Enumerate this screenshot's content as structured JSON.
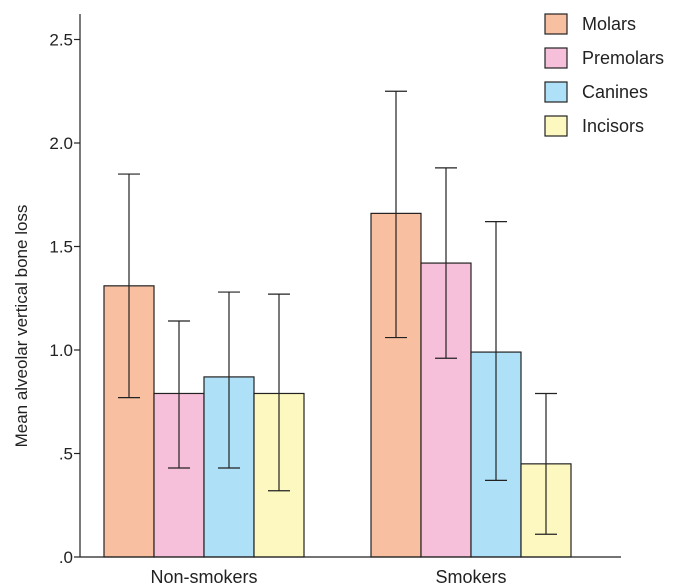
{
  "chart_data": {
    "type": "bar",
    "ylabel": "Mean alveolar vertical bone loss",
    "ylim": [
      0,
      2.6
    ],
    "yticks": [
      {
        "value": 0,
        "label": ".0"
      },
      {
        "value": 0.5,
        "label": ".5"
      },
      {
        "value": 1.0,
        "label": "1.0"
      },
      {
        "value": 1.5,
        "label": "1.5"
      },
      {
        "value": 2.0,
        "label": "2.0"
      },
      {
        "value": 2.5,
        "label": "2.5"
      }
    ],
    "categories": [
      "Non-smokers",
      "Smokers"
    ],
    "legend_position": "top-right",
    "grid": false,
    "series": [
      {
        "name": "Molars",
        "color": "#f9bfa1",
        "values": [
          1.31,
          1.66
        ],
        "err_low": [
          0.77,
          1.06
        ],
        "err_high": [
          1.85,
          2.25
        ]
      },
      {
        "name": "Premolars",
        "color": "#f7c0da",
        "values": [
          0.79,
          1.42
        ],
        "err_low": [
          0.43,
          0.96
        ],
        "err_high": [
          1.14,
          1.88
        ]
      },
      {
        "name": "Canines",
        "color": "#aee0f8",
        "values": [
          0.87,
          0.99
        ],
        "err_low": [
          0.43,
          0.37
        ],
        "err_high": [
          1.28,
          1.62
        ]
      },
      {
        "name": "Incisors",
        "color": "#fdf8bf",
        "values": [
          0.79,
          0.45
        ],
        "err_low": [
          0.32,
          0.11
        ],
        "err_high": [
          1.27,
          0.79
        ]
      }
    ]
  }
}
